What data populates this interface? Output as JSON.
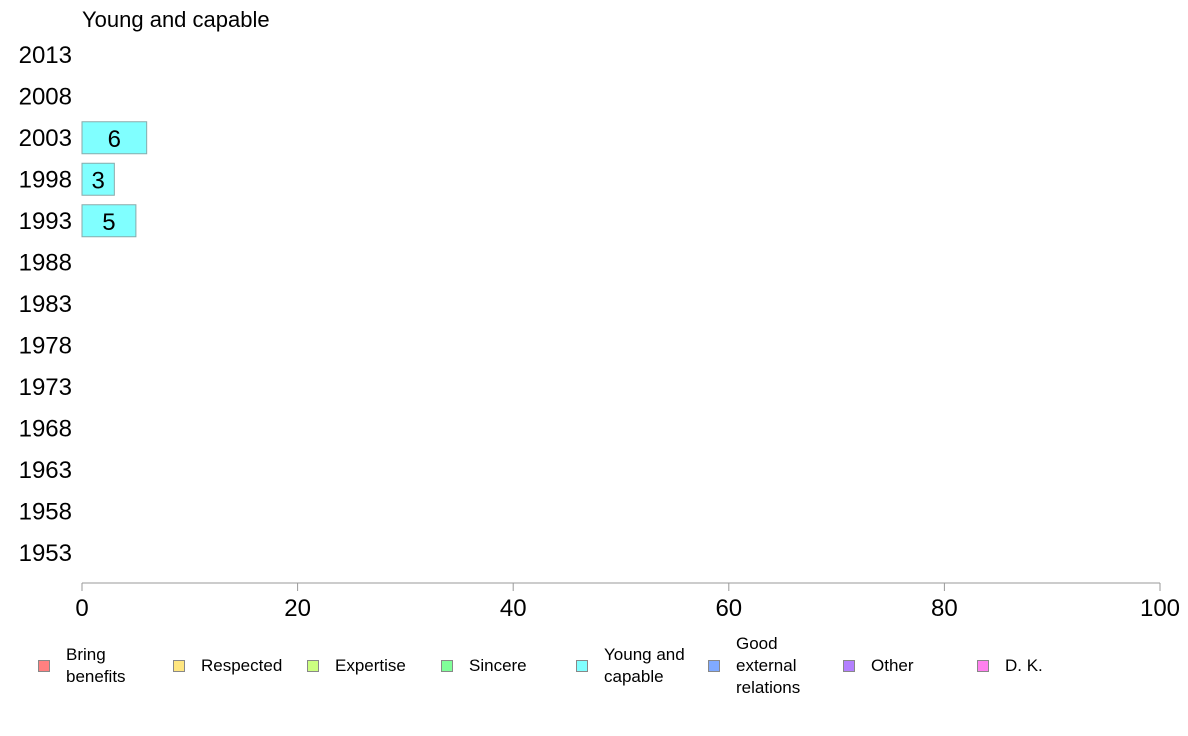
{
  "chart_data": {
    "type": "bar",
    "orientation": "horizontal",
    "title": "Young and capable",
    "categories": [
      "2013",
      "2008",
      "2003",
      "1998",
      "1993",
      "1988",
      "1983",
      "1978",
      "1973",
      "1968",
      "1963",
      "1958",
      "1953"
    ],
    "series": [
      {
        "name": "Young and capable",
        "color": "#80ffff",
        "values": [
          null,
          null,
          6,
          3,
          5,
          null,
          null,
          null,
          null,
          null,
          null,
          null,
          null
        ]
      }
    ],
    "xlim": [
      0,
      100
    ],
    "xticks": [
      "0",
      "20",
      "40",
      "60",
      "80",
      "100"
    ],
    "grid": false,
    "legend_placement": "bottom",
    "legend": [
      {
        "label": "Bring benefits",
        "color": "#ff8080"
      },
      {
        "label": "Respected",
        "color": "#ffe680"
      },
      {
        "label": "Expertise",
        "color": "#ccff80"
      },
      {
        "label": "Sincere",
        "color": "#80ff99"
      },
      {
        "label": "Young and capable",
        "color": "#80ffff"
      },
      {
        "label": "Good external relations",
        "color": "#80aaff"
      },
      {
        "label": "Other",
        "color": "#b380ff"
      },
      {
        "label": "D. K.",
        "color": "#ff80ee"
      }
    ]
  }
}
